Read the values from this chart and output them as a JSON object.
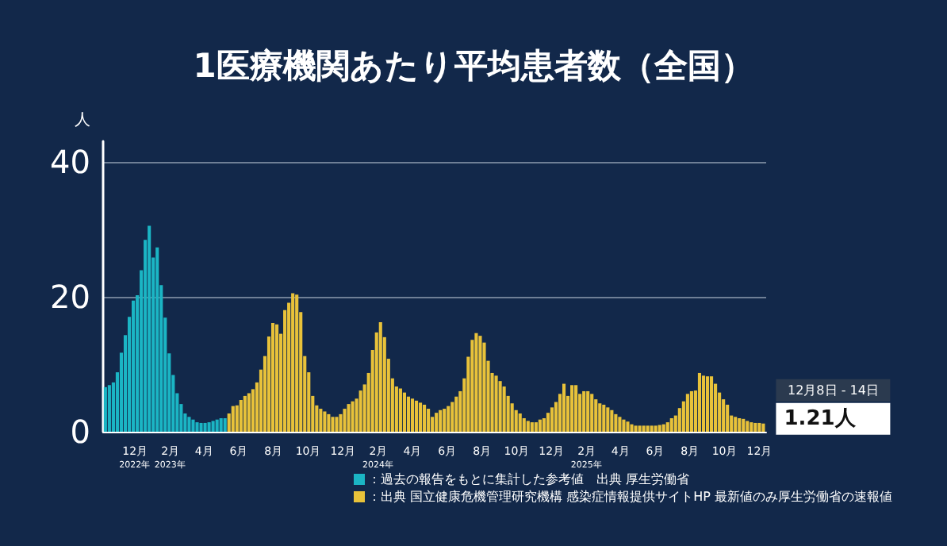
{
  "chart_data": {
    "type": "bar",
    "title": "1医療機関あたり平均患者数（全国）",
    "ylabel": "人",
    "xlim": [
      "2022-10-06",
      "2025-12-13"
    ],
    "xticks": [
      {
        "value": "2022-12-01",
        "label": "12月\n2022年"
      },
      {
        "value": "2023-02-01",
        "label": "2月\n2023年"
      },
      {
        "value": "2023-04-01",
        "label": "4月"
      },
      {
        "value": "2023-06-01",
        "label": "6月"
      },
      {
        "value": "2023-08-01",
        "label": "8月"
      },
      {
        "value": "2023-10-01",
        "label": "10月"
      },
      {
        "value": "2023-12-01",
        "label": "12月"
      },
      {
        "value": "2024-02-01",
        "label": "2月\n2024年"
      },
      {
        "value": "2024-04-01",
        "label": "4月"
      },
      {
        "value": "2024-06-01",
        "label": "6月"
      },
      {
        "value": "2024-08-01",
        "label": "8月"
      },
      {
        "value": "2024-10-01",
        "label": "10月"
      },
      {
        "value": "2024-12-01",
        "label": "12月"
      },
      {
        "value": "2025-02-01",
        "label": "2月\n2025年"
      },
      {
        "value": "2025-04-01",
        "label": "4月"
      },
      {
        "value": "2025-06-01",
        "label": "6月"
      },
      {
        "value": "2025-08-01",
        "label": "8月"
      },
      {
        "value": "2025-10-01",
        "label": "10月"
      },
      {
        "value": "2025-12-01",
        "label": "12月"
      }
    ],
    "ylim": [
      0,
      43
    ],
    "yticks": [
      0,
      20,
      40
    ],
    "grid": "y",
    "legend": "bottom",
    "series": [
      {
        "name": "：過去の報告をもとに集計した参考値　出典 厚生労働省",
        "color": "#1bb5c4",
        "x": [
          "2022-10-10",
          "2022-10-17",
          "2022-10-24",
          "2022-10-31",
          "2022-11-07",
          "2022-11-14",
          "2022-11-21",
          "2022-11-28",
          "2022-12-05",
          "2022-12-12",
          "2022-12-19",
          "2022-12-26",
          "2023-01-02",
          "2023-01-09",
          "2023-01-16",
          "2023-01-23",
          "2023-01-30",
          "2023-02-06",
          "2023-02-13",
          "2023-02-20",
          "2023-02-27",
          "2023-03-06",
          "2023-03-13",
          "2023-03-20",
          "2023-03-27",
          "2023-04-03",
          "2023-04-10",
          "2023-04-17",
          "2023-04-24",
          "2023-05-01",
          "2023-05-08"
        ],
        "values": [
          6.6,
          6.9,
          7.3,
          8.8,
          11.7,
          14.3,
          17.0,
          19.4,
          20.2,
          23.9,
          28.4,
          30.5,
          25.8,
          27.3,
          21.7,
          16.9,
          11.6,
          8.4,
          5.7,
          4.1,
          2.7,
          2.2,
          1.8,
          1.4,
          1.3,
          1.3,
          1.4,
          1.6,
          1.8,
          2.0,
          2.0
        ]
      },
      {
        "name": "：出典 国立健康危機管理研究機構 感染症情報提供サイトHP 最新値のみ厚生労働省の速報値",
        "color": "#e8c23a",
        "x": [
          "2023-05-15",
          "2023-05-22",
          "2023-05-29",
          "2023-06-05",
          "2023-06-12",
          "2023-06-19",
          "2023-06-26",
          "2023-07-03",
          "2023-07-10",
          "2023-07-17",
          "2023-07-24",
          "2023-07-31",
          "2023-08-07",
          "2023-08-14",
          "2023-08-21",
          "2023-08-28",
          "2023-09-04",
          "2023-09-11",
          "2023-09-18",
          "2023-09-25",
          "2023-10-02",
          "2023-10-09",
          "2023-10-16",
          "2023-10-23",
          "2023-10-30",
          "2023-11-06",
          "2023-11-13",
          "2023-11-20",
          "2023-11-27",
          "2023-12-04",
          "2023-12-11",
          "2023-12-18",
          "2023-12-25",
          "2024-01-01",
          "2024-01-08",
          "2024-01-15",
          "2024-01-22",
          "2024-01-29",
          "2024-02-05",
          "2024-02-12",
          "2024-02-19",
          "2024-02-26",
          "2024-03-04",
          "2024-03-11",
          "2024-03-18",
          "2024-03-25",
          "2024-04-01",
          "2024-04-08",
          "2024-04-15",
          "2024-04-22",
          "2024-04-29",
          "2024-05-06",
          "2024-05-13",
          "2024-05-20",
          "2024-05-27",
          "2024-06-03",
          "2024-06-10",
          "2024-06-17",
          "2024-06-24",
          "2024-07-01",
          "2024-07-08",
          "2024-07-15",
          "2024-07-22",
          "2024-07-29",
          "2024-08-05",
          "2024-08-12",
          "2024-08-19",
          "2024-08-26",
          "2024-09-02",
          "2024-09-09",
          "2024-09-16",
          "2024-09-23",
          "2024-09-30",
          "2024-10-07",
          "2024-10-14",
          "2024-10-21",
          "2024-10-28",
          "2024-11-04",
          "2024-11-11",
          "2024-11-18",
          "2024-11-25",
          "2024-12-02",
          "2024-12-09",
          "2024-12-16",
          "2024-12-23",
          "2024-12-30",
          "2025-01-06",
          "2025-01-13",
          "2025-01-20",
          "2025-01-27",
          "2025-02-03",
          "2025-02-10",
          "2025-02-17",
          "2025-02-24",
          "2025-03-03",
          "2025-03-10",
          "2025-03-17",
          "2025-03-24",
          "2025-03-31",
          "2025-04-07",
          "2025-04-14",
          "2025-04-21",
          "2025-04-28",
          "2025-05-05",
          "2025-05-12",
          "2025-05-19",
          "2025-05-26",
          "2025-06-02",
          "2025-06-09",
          "2025-06-16",
          "2025-06-23",
          "2025-06-30",
          "2025-07-07",
          "2025-07-14",
          "2025-07-21",
          "2025-07-28",
          "2025-08-04",
          "2025-08-11",
          "2025-08-18",
          "2025-08-25",
          "2025-09-01",
          "2025-09-08",
          "2025-09-15",
          "2025-09-22",
          "2025-09-29",
          "2025-10-06",
          "2025-10-13",
          "2025-10-20",
          "2025-10-27",
          "2025-11-03",
          "2025-11-10",
          "2025-11-17",
          "2025-11-24",
          "2025-12-01",
          "2025-12-08"
        ],
        "values": [
          2.7,
          3.8,
          3.9,
          4.7,
          5.3,
          5.7,
          6.3,
          7.3,
          9.2,
          11.2,
          14.1,
          16.1,
          15.9,
          14.5,
          18.0,
          19.1,
          20.5,
          20.3,
          17.7,
          11.2,
          8.8,
          5.3,
          3.9,
          3.4,
          3.0,
          2.6,
          2.2,
          2.2,
          2.6,
          3.4,
          4.1,
          4.5,
          4.9,
          6.1,
          7.0,
          8.7,
          12.1,
          14.7,
          16.2,
          14.0,
          10.8,
          7.9,
          6.7,
          6.4,
          5.8,
          5.2,
          4.9,
          4.6,
          4.3,
          4.0,
          3.4,
          2.2,
          2.8,
          3.2,
          3.4,
          3.8,
          4.4,
          5.2,
          6.0,
          7.9,
          11.1,
          13.6,
          14.6,
          14.2,
          13.2,
          10.5,
          8.7,
          8.3,
          7.5,
          6.7,
          5.3,
          4.2,
          3.2,
          2.7,
          2.0,
          1.6,
          1.4,
          1.4,
          1.8,
          2.0,
          2.8,
          3.6,
          4.4,
          5.6,
          7.1,
          5.3,
          6.9,
          6.9,
          5.6,
          6.0,
          6.0,
          5.6,
          4.8,
          4.2,
          4.0,
          3.6,
          3.2,
          2.6,
          2.2,
          1.8,
          1.5,
          1.1,
          0.9,
          0.9,
          0.9,
          0.9,
          0.9,
          0.9,
          1.0,
          1.1,
          1.4,
          2.0,
          2.4,
          3.5,
          4.5,
          5.6,
          6.0,
          6.1,
          8.7,
          8.3,
          8.2,
          8.2,
          7.1,
          5.8,
          4.8,
          4.0,
          2.4,
          2.2,
          2.0,
          1.9,
          1.6,
          1.4,
          1.3,
          1.3,
          1.21
        ]
      }
    ],
    "annotations": [
      {
        "text": "12月8日 - 14日",
        "x": "2025-12-08",
        "y": 1.21
      },
      {
        "text": "1.21人",
        "x": "2025-12-08",
        "y": 1.21
      }
    ]
  }
}
